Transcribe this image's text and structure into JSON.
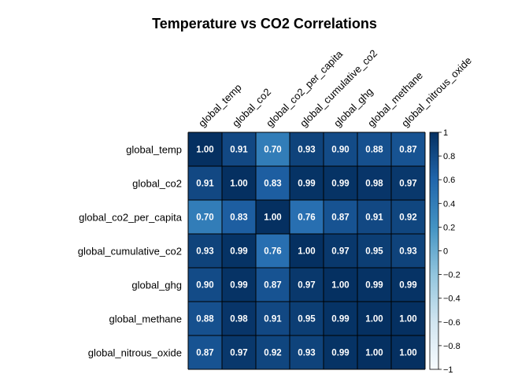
{
  "chart_data": {
    "type": "heatmap",
    "title": "Temperature vs CO2 Correlations",
    "variables": [
      "global_temp",
      "global_co2",
      "global_co2_per_capita",
      "global_cumulative_co2",
      "global_ghg",
      "global_methane",
      "global_nitrous_oxide"
    ],
    "matrix": [
      [
        1.0,
        0.91,
        0.7,
        0.93,
        0.9,
        0.88,
        0.87
      ],
      [
        0.91,
        1.0,
        0.83,
        0.99,
        0.99,
        0.98,
        0.97
      ],
      [
        0.7,
        0.83,
        1.0,
        0.76,
        0.87,
        0.91,
        0.92
      ],
      [
        0.93,
        0.99,
        0.76,
        1.0,
        0.97,
        0.95,
        0.93
      ],
      [
        0.9,
        0.99,
        0.87,
        0.97,
        1.0,
        0.99,
        0.99
      ],
      [
        0.88,
        0.98,
        0.91,
        0.95,
        0.99,
        1.0,
        1.0
      ],
      [
        0.87,
        0.97,
        0.92,
        0.93,
        0.99,
        1.0,
        1.0
      ]
    ],
    "colorbar": {
      "range": [
        -1,
        1
      ],
      "ticks": [
        "1",
        "0.8",
        "0.6",
        "0.4",
        "0.2",
        "0",
        "−0.2",
        "−0.4",
        "−0.6",
        "−0.8",
        "−1"
      ],
      "colors": [
        "#053061",
        "#2166ac",
        "#4393c3",
        "#92c5de",
        "#d1e5f0",
        "#f7fbff"
      ]
    }
  }
}
